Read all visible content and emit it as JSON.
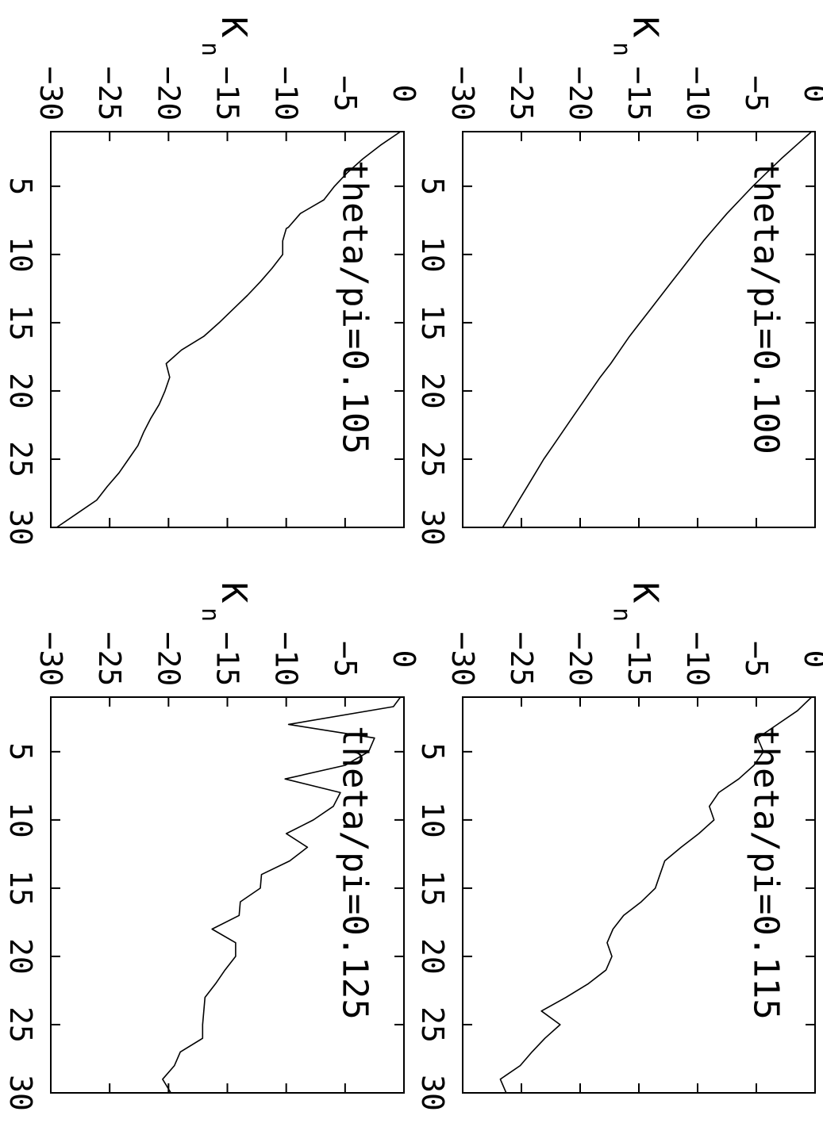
{
  "figure": {
    "orientation": "rotated-90-clockwise",
    "background": "#ffffff",
    "stroke": "#000000"
  },
  "chart_data": [
    {
      "type": "line",
      "annotation": "theta/pi=0.100",
      "ylabel": "K",
      "ylabel_subscript": "n",
      "xlabel": "",
      "xlim": [
        1,
        30
      ],
      "ylim": [
        -30,
        0
      ],
      "xticks": [
        "5",
        "10",
        "15",
        "20",
        "25",
        "30"
      ],
      "yticks": [
        "0",
        "-5",
        "-10",
        "-15",
        "-20",
        "-25",
        "-30"
      ],
      "x": [
        1,
        2,
        3,
        4,
        5,
        6,
        7,
        8,
        9,
        10,
        11,
        12,
        13,
        14,
        15,
        16,
        17,
        18,
        19,
        20,
        21,
        22,
        23,
        24,
        25,
        26,
        27,
        28,
        29,
        30
      ],
      "y": [
        -0.3,
        -1.6,
        -2.9,
        -4.1,
        -5.3,
        -6.4,
        -7.5,
        -8.5,
        -9.5,
        -10.4,
        -11.3,
        -12.2,
        -13.1,
        -14.0,
        -14.9,
        -15.8,
        -16.6,
        -17.4,
        -18.3,
        -19.1,
        -19.9,
        -20.7,
        -21.5,
        -22.3,
        -23.1,
        -23.8,
        -24.5,
        -25.2,
        -25.9,
        -26.6
      ]
    },
    {
      "type": "line",
      "annotation": "theta/pi=0.105",
      "ylabel": "K",
      "ylabel_subscript": "n",
      "xlabel": "",
      "xlim": [
        1,
        30
      ],
      "ylim": [
        -30,
        0
      ],
      "xticks": [
        "5",
        "10",
        "15",
        "20",
        "25",
        "30"
      ],
      "yticks": [
        "0",
        "-5",
        "-10",
        "-15",
        "-20",
        "-25",
        "-30"
      ],
      "x": [
        1,
        2,
        3,
        4,
        5,
        6,
        7,
        8,
        8.1,
        9,
        10,
        11,
        12,
        13,
        14,
        15,
        16,
        17,
        18,
        19,
        20,
        21,
        22,
        23,
        24,
        25,
        26,
        27,
        28,
        29,
        30
      ],
      "y": [
        -0.3,
        -2.0,
        -3.5,
        -4.8,
        -5.9,
        -6.8,
        -8.8,
        -9.8,
        -10.0,
        -10.3,
        -10.3,
        -11.2,
        -12.2,
        -13.3,
        -14.5,
        -15.7,
        -17.0,
        -18.9,
        -20.2,
        -19.9,
        -20.3,
        -20.8,
        -21.5,
        -22.1,
        -22.6,
        -23.4,
        -24.2,
        -25.2,
        -26.1,
        -27.8,
        -29.5
      ]
    },
    {
      "type": "line",
      "annotation": "theta/pi=0.115",
      "ylabel": "K",
      "ylabel_subscript": "n",
      "xlabel": "",
      "xlim": [
        1,
        30
      ],
      "ylim": [
        -30,
        0
      ],
      "xticks": [
        "5",
        "10",
        "15",
        "20",
        "25",
        "30"
      ],
      "yticks": [
        "0",
        "-5",
        "-10",
        "-15",
        "-20",
        "-25",
        "-30"
      ],
      "x": [
        1,
        2,
        3,
        4,
        5,
        6,
        7,
        8,
        9,
        10,
        11,
        12,
        13,
        14,
        15,
        16,
        17,
        18,
        19,
        20,
        21,
        22,
        23,
        24,
        25,
        26,
        27,
        28,
        29,
        30
      ],
      "y": [
        -0.3,
        -1.5,
        -3.2,
        -4.9,
        -4.4,
        -5.2,
        -6.5,
        -8.2,
        -9.0,
        -8.6,
        -9.9,
        -11.4,
        -12.8,
        -13.2,
        -13.6,
        -14.8,
        -16.3,
        -17.2,
        -17.7,
        -17.3,
        -17.8,
        -19.3,
        -21.2,
        -23.3,
        -21.7,
        -23.0,
        -24.1,
        -25.1,
        -26.8,
        -26.3
      ]
    },
    {
      "type": "line",
      "annotation": "theta/pi=0.125",
      "ylabel": "K",
      "ylabel_subscript": "n",
      "xlabel": "",
      "xlim": [
        1,
        30
      ],
      "ylim": [
        -30,
        0
      ],
      "xticks": [
        "5",
        "10",
        "15",
        "20",
        "25",
        "30"
      ],
      "yticks": [
        "0",
        "-5",
        "-10",
        "-15",
        "-20",
        "-25",
        "-30"
      ],
      "x": [
        1,
        1.7,
        3,
        4,
        5,
        6,
        7,
        8,
        9,
        10,
        11,
        12,
        13,
        14,
        15,
        16,
        17,
        18,
        19,
        20,
        21,
        22,
        23,
        24,
        25,
        26,
        27,
        28,
        29,
        30
      ],
      "y": [
        -0.3,
        -0.9,
        -9.8,
        -2.5,
        -3.0,
        -5.0,
        -10.1,
        -5.4,
        -6.0,
        -7.7,
        -10.0,
        -8.2,
        -9.7,
        -12.1,
        -12.2,
        -13.9,
        -14.0,
        -16.3,
        -14.3,
        -14.3,
        -15.2,
        -16.0,
        -16.9,
        -17.0,
        -17.1,
        -17.1,
        -19.0,
        -19.5,
        -20.5,
        -19.8
      ]
    }
  ]
}
